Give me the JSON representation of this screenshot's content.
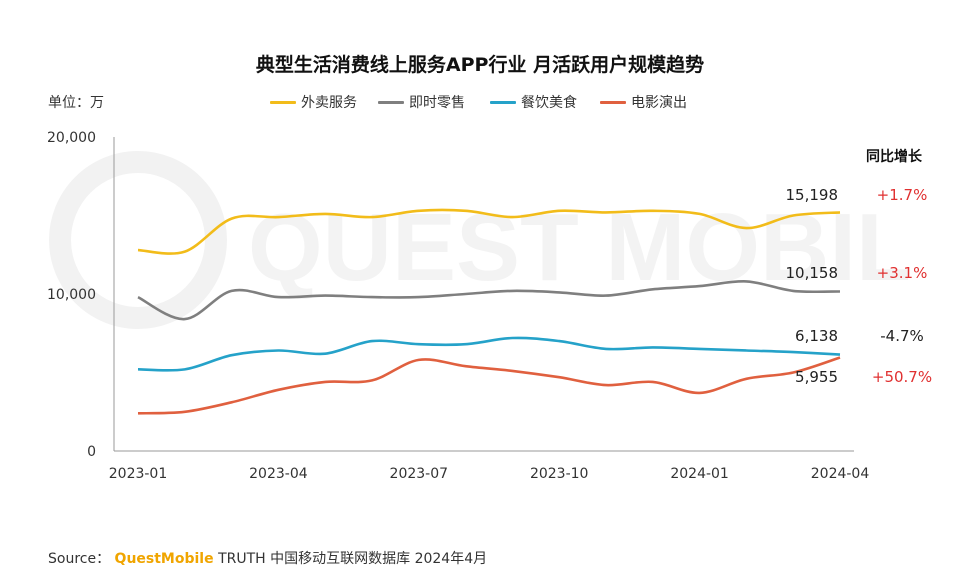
{
  "header": {
    "title": "典型生活消费线上服务APP行业 月活跃用户规模趋势",
    "unit_label": "单位：万",
    "yoy_header": "同比增长"
  },
  "legend": [
    {
      "label": "外卖服务",
      "color": "#f2bc1a"
    },
    {
      "label": "即时零售",
      "color": "#7f7f7f"
    },
    {
      "label": "餐饮美食",
      "color": "#25a2c9"
    },
    {
      "label": "电影演出",
      "color": "#e0603f"
    }
  ],
  "watermark": "QUEST MOBILE",
  "source": {
    "prefix": "Source：",
    "brand": "QuestMobile",
    "suffix": "TRUTH 中国移动互联网数据库 2024年4月"
  },
  "chart_data": {
    "type": "line",
    "title": "典型生活消费线上服务APP行业 月活跃用户规模趋势",
    "ylabel": "单位：万",
    "ylim": [
      0,
      20000
    ],
    "yticks": [
      "0",
      "10,000",
      "20,000"
    ],
    "x": [
      "2023-01",
      "2023-02",
      "2023-03",
      "2023-04",
      "2023-05",
      "2023-06",
      "2023-07",
      "2023-08",
      "2023-09",
      "2023-10",
      "2023-11",
      "2023-12",
      "2024-01",
      "2024-02",
      "2024-03",
      "2024-04"
    ],
    "xtick_labels": [
      "2023-01",
      "2023-04",
      "2023-07",
      "2023-10",
      "2024-01",
      "2024-04"
    ],
    "series": [
      {
        "name": "外卖服务",
        "color": "#f2bc1a",
        "values": [
          12800,
          12700,
          14800,
          14900,
          15100,
          14900,
          15300,
          15300,
          14900,
          15300,
          15200,
          15300,
          15100,
          14200,
          15000,
          15198
        ],
        "end_label": "15,198",
        "yoy": "+1.7%",
        "yoy_color": "#e03030"
      },
      {
        "name": "即时零售",
        "color": "#7f7f7f",
        "values": [
          9800,
          8400,
          10200,
          9800,
          9900,
          9800,
          9800,
          10000,
          10200,
          10100,
          9900,
          10300,
          10500,
          10800,
          10200,
          10158
        ],
        "end_label": "10,158",
        "yoy": "+3.1%",
        "yoy_color": "#e03030"
      },
      {
        "name": "餐饮美食",
        "color": "#25a2c9",
        "values": [
          5200,
          5200,
          6100,
          6400,
          6200,
          7000,
          6800,
          6800,
          7200,
          7000,
          6500,
          6600,
          6500,
          6400,
          6300,
          6138
        ],
        "end_label": "6,138",
        "yoy": "-4.7%",
        "yoy_color": "#222222"
      },
      {
        "name": "电影演出",
        "color": "#e0603f",
        "values": [
          2400,
          2500,
          3100,
          3900,
          4400,
          4500,
          5800,
          5400,
          5100,
          4700,
          4200,
          4400,
          3700,
          4600,
          5000,
          5955
        ],
        "end_label": "5,955",
        "yoy": "+50.7%",
        "yoy_color": "#e03030"
      }
    ],
    "grid": false,
    "legend_position": "top"
  }
}
